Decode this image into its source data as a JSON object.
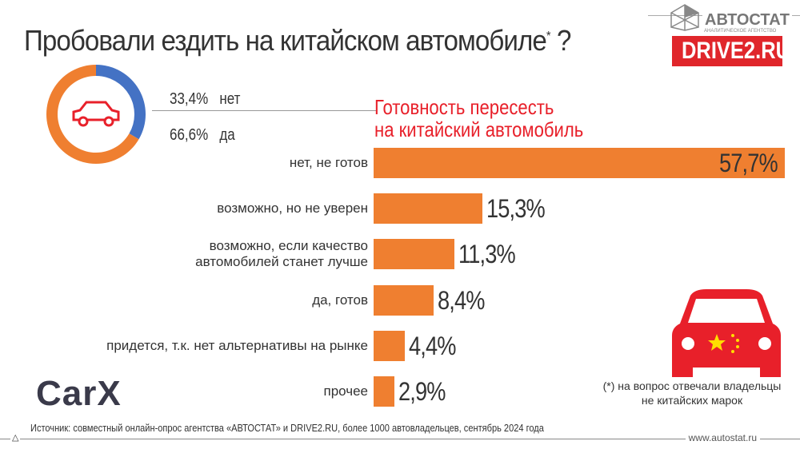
{
  "title": "Пробовали ездить на китайском автомобиле",
  "title_mark": "*",
  "title_end": " ?",
  "logos": {
    "autostat": "АВТОСТАТ",
    "autostat_sub": "АНАЛИТИЧЕСКОЕ АГЕНТСТВО",
    "drive2": "DRIVE2.RU",
    "carx": "CarX"
  },
  "colors": {
    "orange": "#ef7f30",
    "blue": "#4472c4",
    "red": "#e8202a",
    "drive2_bg": "#e0262b"
  },
  "chart_data": [
    {
      "type": "pie",
      "variant": "donut",
      "categories": [
        "нет",
        "да"
      ],
      "values": [
        33.4,
        66.6
      ],
      "labels": [
        "33,4%",
        "66,6%"
      ],
      "colors": [
        "#4472c4",
        "#ef7f30"
      ]
    },
    {
      "type": "bar",
      "orientation": "horizontal",
      "title": "Готовность пересесть на китайский автомобиль",
      "categories": [
        "нет, не готов",
        "возможно, но не уверен",
        "возможно, если качество автомобилей станет лучше",
        "да, готов",
        "придется, т.к. нет альтернативы на рынке",
        "прочее"
      ],
      "values": [
        57.7,
        15.3,
        11.3,
        8.4,
        4.4,
        2.9
      ],
      "labels": [
        "57,7%",
        "15,3%",
        "11,3%",
        "8,4%",
        "4,4%",
        "2,9%"
      ]
    }
  ],
  "bar_title_1": "Готовность пересесть",
  "bar_title_2": "на китайский автомобиль",
  "cat_lines": [
    [
      "нет, не готов"
    ],
    [
      "возможно, но не уверен"
    ],
    [
      "возможно, если качество",
      "автомобилей станет лучше"
    ],
    [
      "да, готов"
    ],
    [
      "придется, т.к. нет альтернативы на рынке"
    ],
    [
      "прочее"
    ]
  ],
  "footnote_1": "(*) на вопрос отвечали владельцы",
  "footnote_2": "не китайских марок",
  "source": "Источник: совместный онлайн-опрос агентства «АВТОСТАТ» и DRIVE2.RU, более 1000 автовладельцев, сентябрь 2024 года",
  "site": "www.autostat.ru"
}
